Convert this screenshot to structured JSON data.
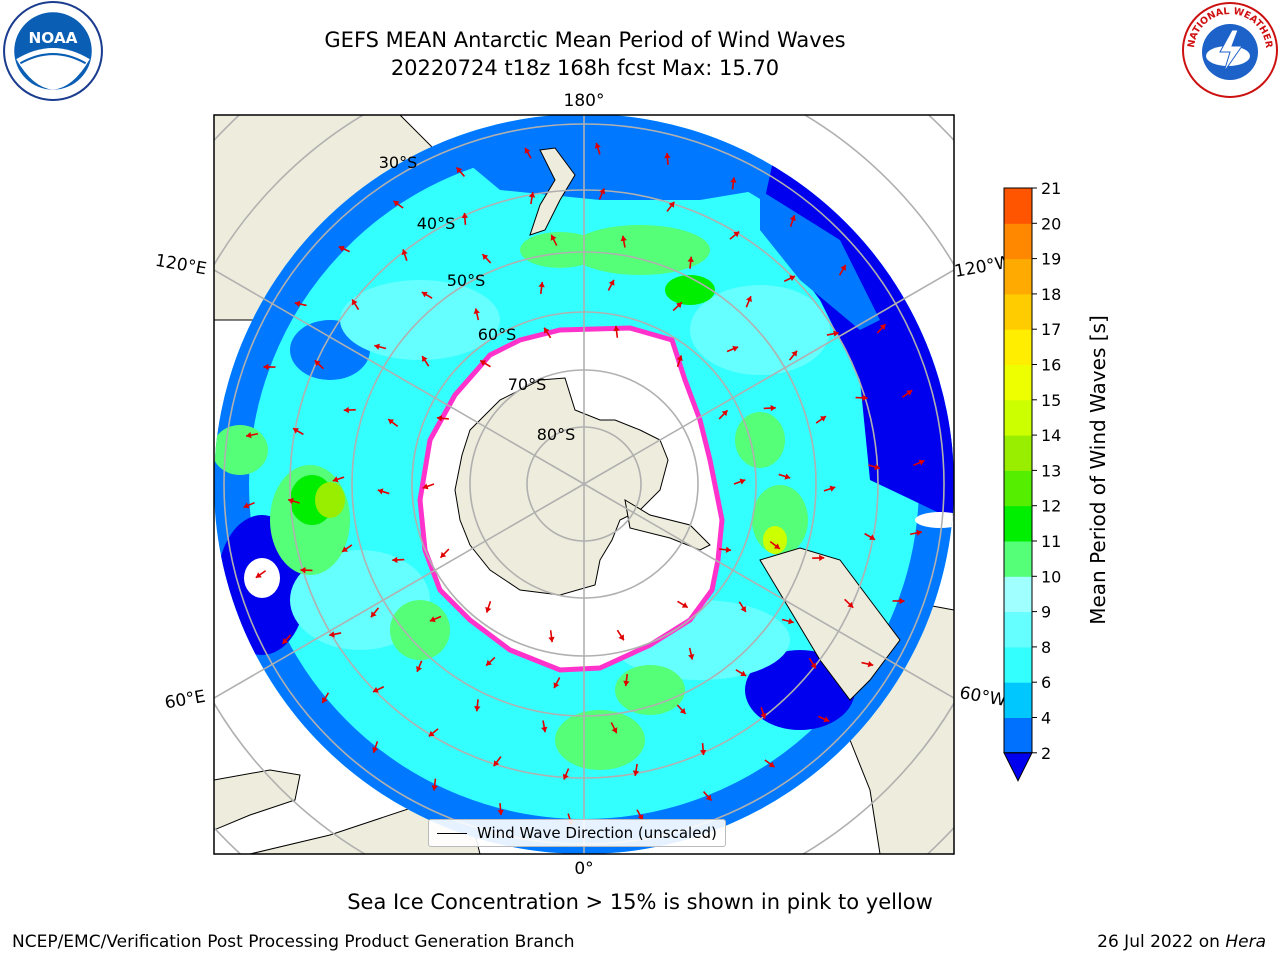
{
  "header": {
    "title_line1": "GEFS MEAN Antarctic Mean Period of Wind Waves",
    "title_line2": "20220724 t18z 168h fcst   Max: 15.70"
  },
  "map": {
    "projection": "south-polar-stereographic",
    "lon_labels": {
      "top": "180°",
      "bottom": "0°",
      "left_upper": "120°E",
      "left_lower": "60°E",
      "right_upper": "120°W",
      "right_lower": "60°W"
    },
    "lat_labels": [
      "30°S",
      "40°S",
      "50°S",
      "60°S",
      "70°S",
      "80°S"
    ],
    "legend_label": "Wind Wave Direction (unscaled)",
    "ocean_base_color": "#33ffff",
    "land_color": "#eeecdc",
    "ice_color": "#ffffff",
    "ice_edge_color": "#ff33cc"
  },
  "colorbar": {
    "label": "Mean Period of Wind Waves [s]",
    "ticks": [
      "2",
      "4",
      "6",
      "8",
      "9",
      "10",
      "11",
      "12",
      "13",
      "14",
      "15",
      "16",
      "17",
      "18",
      "19",
      "20",
      "21"
    ],
    "colors": [
      "#0070ff",
      "#00c8ff",
      "#33ffff",
      "#66ffff",
      "#a0ffff",
      "#55ff77",
      "#00ee00",
      "#55ee00",
      "#99ee00",
      "#ccff00",
      "#eeff00",
      "#ffee00",
      "#ffcc00",
      "#ffaa00",
      "#ff8800",
      "#ff5500",
      "#ff2200",
      "#ff0000"
    ],
    "extend_min_color": "#0000ee"
  },
  "footer": {
    "ice_note": "Sea Ice Concentration > 15% is shown in pink to yellow",
    "producer": "NCEP/EMC/Verification Post Processing Product Generation Branch",
    "date_prefix": "26 Jul 2022 on ",
    "host": "Hera"
  },
  "logos": {
    "left": "NOAA",
    "right": "NATIONAL WEATHER SERVICE"
  }
}
